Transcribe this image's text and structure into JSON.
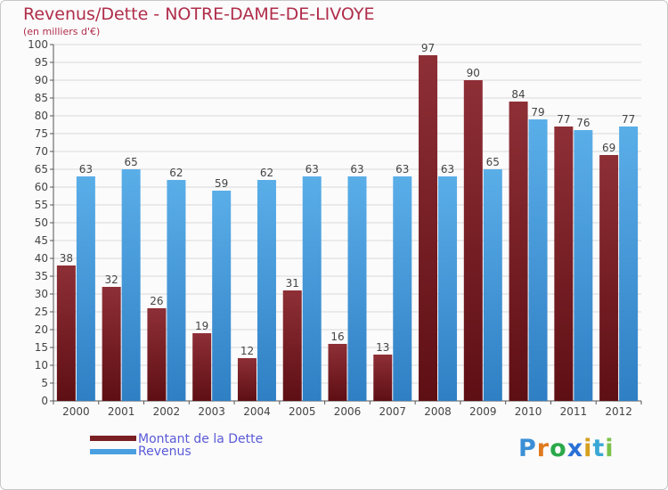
{
  "header": {
    "title": "Revenus/Dette - NOTRE-DAME-DE-LIVOYE",
    "subtitle": "(en milliers d'€)"
  },
  "colors": {
    "title": "#b02d4a",
    "dette": "#7a1f24",
    "revenus": "#4a9fe0",
    "legend_text": "#5a5ad8",
    "grid": "#d8d8d8"
  },
  "legend": {
    "dette_label": "Montant de la Dette",
    "revenus_label": "Revenus"
  },
  "logo": {
    "letters": [
      "P",
      "r",
      "o",
      "x",
      "i",
      "t",
      "i"
    ],
    "colors": [
      "#3a8fd6",
      "#e07a1f",
      "#2aa84a",
      "#2a6fd6",
      "#d6a01f",
      "#3aa8d6",
      "#7ac24a"
    ]
  },
  "chart_data": {
    "type": "bar",
    "title": "Revenus/Dette - NOTRE-DAME-DE-LIVOYE",
    "subtitle": "(en milliers d'€)",
    "categories": [
      "2000",
      "2001",
      "2002",
      "2003",
      "2004",
      "2005",
      "2006",
      "2007",
      "2008",
      "2009",
      "2010",
      "2011",
      "2012"
    ],
    "series": [
      {
        "name": "Montant de la Dette",
        "values": [
          38,
          32,
          26,
          19,
          12,
          31,
          16,
          13,
          97,
          90,
          84,
          77,
          69
        ]
      },
      {
        "name": "Revenus",
        "values": [
          63,
          65,
          62,
          59,
          62,
          63,
          63,
          63,
          63,
          65,
          79,
          76,
          77
        ]
      }
    ],
    "ylim": [
      0,
      100
    ],
    "ytick_step": 5,
    "grid": true,
    "legend_position": "bottom-left"
  }
}
